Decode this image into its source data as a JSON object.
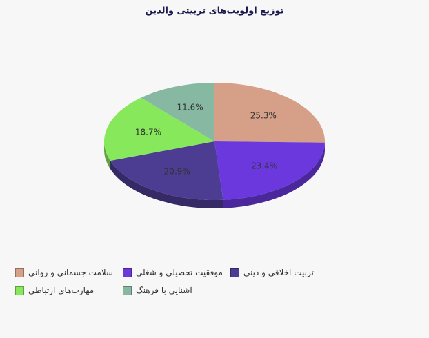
{
  "chart_data": {
    "type": "pie",
    "title": "توزیع اولویت‌های تربیتی والدین",
    "categories": [
      "سلامت جسمانی و روانی",
      "موفقیت تحصیلی و شغلی",
      "تربیت اخلاقی و دینی",
      "مهارت‌های ارتباطی",
      "آشنایی با فرهنگ"
    ],
    "values": [
      25.3,
      23.4,
      20.9,
      18.7,
      11.6
    ],
    "value_labels": [
      "25.3%",
      "23.4%",
      "20.9%",
      "18.7%",
      "11.6%"
    ],
    "colors": [
      "#d6a088",
      "#6a38dc",
      "#4c3c92",
      "#86e85a",
      "#86b8a2"
    ]
  }
}
